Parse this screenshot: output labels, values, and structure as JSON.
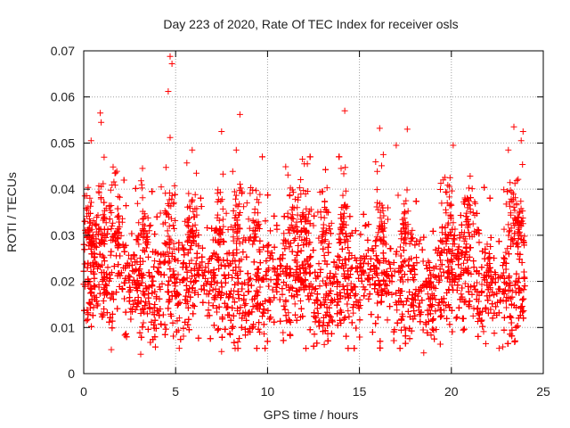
{
  "chart_data": {
    "type": "scatter",
    "title": "Day 223 of 2020, Rate Of TEC Index for receiver osls",
    "xlabel": "GPS time / hours",
    "ylabel": "ROTI / TECUs",
    "xlim": [
      0,
      25
    ],
    "ylim": [
      0,
      0.07
    ],
    "xticks": [
      0,
      5,
      10,
      15,
      20,
      25
    ],
    "xtick_labels": [
      "0",
      "5",
      "10",
      "15",
      "20",
      "25"
    ],
    "yticks": [
      0,
      0.01,
      0.02,
      0.03,
      0.04,
      0.05,
      0.06,
      0.07
    ],
    "ytick_labels": [
      "0",
      "0.01",
      "0.02",
      "0.03",
      "0.04",
      "0.05",
      "0.06",
      "0.07"
    ],
    "grid": true,
    "marker": "+",
    "color": "#ff0000",
    "series": [
      {
        "name": "ROTI",
        "x_range": [
          0,
          24
        ],
        "bulk_range": [
          0.008,
          0.035
        ],
        "outliers": [
          {
            "x": 4.7,
            "y": 0.0688
          },
          {
            "x": 4.8,
            "y": 0.0672
          },
          {
            "x": 4.6,
            "y": 0.0612
          },
          {
            "x": 0.9,
            "y": 0.0565
          },
          {
            "x": 0.95,
            "y": 0.0545
          },
          {
            "x": 14.2,
            "y": 0.057
          },
          {
            "x": 8.5,
            "y": 0.0562
          },
          {
            "x": 23.4,
            "y": 0.0535
          },
          {
            "x": 17.6,
            "y": 0.053
          },
          {
            "x": 16.1,
            "y": 0.0532
          },
          {
            "x": 7.5,
            "y": 0.0525
          },
          {
            "x": 4.7,
            "y": 0.0512
          },
          {
            "x": 0.4,
            "y": 0.0505
          },
          {
            "x": 17.0,
            "y": 0.0495
          },
          {
            "x": 20.1,
            "y": 0.0495
          },
          {
            "x": 23.9,
            "y": 0.0525
          },
          {
            "x": 23.8,
            "y": 0.0505
          },
          {
            "x": 8.3,
            "y": 0.0485
          },
          {
            "x": 14.0,
            "y": 0.0445
          },
          {
            "x": 11.9,
            "y": 0.0465
          },
          {
            "x": 5.9,
            "y": 0.0485
          },
          {
            "x": 16.3,
            "y": 0.0475
          },
          {
            "x": 12.0,
            "y": 0.0455
          },
          {
            "x": 23.1,
            "y": 0.0485
          },
          {
            "x": 1.6,
            "y": 0.0448
          },
          {
            "x": 3.2,
            "y": 0.0445
          }
        ],
        "lows": [
          {
            "x": 3.1,
            "y": 0.0042
          },
          {
            "x": 18.5,
            "y": 0.0045
          },
          {
            "x": 7.5,
            "y": 0.0048
          },
          {
            "x": 1.5,
            "y": 0.0052
          },
          {
            "x": 5.2,
            "y": 0.0055
          },
          {
            "x": 22.8,
            "y": 0.0058
          }
        ]
      }
    ]
  }
}
